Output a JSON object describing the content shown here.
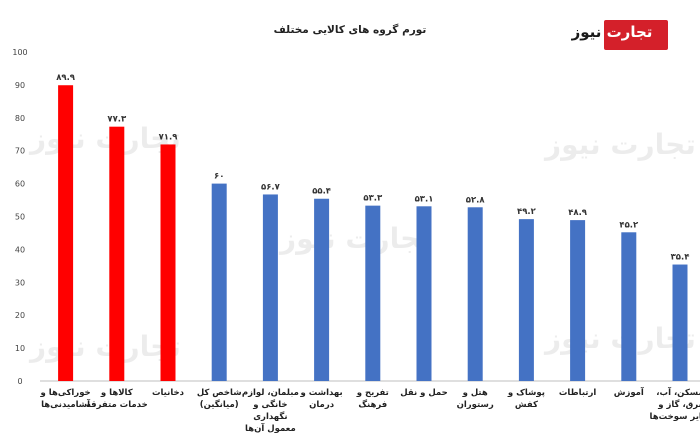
{
  "watermark_text": "تجارت نیوز",
  "logo": {
    "part_a": "تجارت",
    "part_b": "نیوز"
  },
  "colors": {
    "highlight": "#ff0000",
    "default": "#4472c4"
  },
  "chart_data": {
    "type": "bar",
    "title": "تورم گروه های کالایی مختلف",
    "xlabel": "",
    "ylabel": "",
    "ylim": [
      0,
      100
    ],
    "yticks": [
      {
        "value": 0,
        "label": "0"
      },
      {
        "value": 10,
        "label": "10"
      },
      {
        "value": 20,
        "label": "20"
      },
      {
        "value": 30,
        "label": "30"
      },
      {
        "value": 40,
        "label": "40"
      },
      {
        "value": 50,
        "label": "50"
      },
      {
        "value": 60,
        "label": "60"
      },
      {
        "value": 70,
        "label": "70"
      },
      {
        "value": 80,
        "label": "80"
      },
      {
        "value": 90,
        "label": "90"
      },
      {
        "value": 100,
        "label": "100"
      }
    ],
    "grid": false,
    "legend": "none",
    "categories": [
      [
        "خوراکی‌ها و",
        "آشامیدنی‌ها"
      ],
      [
        "کالاها و",
        "خدمات متفرقه"
      ],
      [
        "دخانیات"
      ],
      [
        "شاخص کل",
        "(میانگین)"
      ],
      [
        "مبلمان، لوازم",
        "خانگی و",
        "نگهداری",
        "معمول آن‌ها"
      ],
      [
        "بهداشت و",
        "درمان"
      ],
      [
        "تفریح و",
        "فرهنگ"
      ],
      [
        "حمل و نقل"
      ],
      [
        "هتل و",
        "رستوران"
      ],
      [
        "پوشاک و",
        "کفش"
      ],
      [
        "ارتباطات"
      ],
      [
        "آموزش"
      ],
      [
        "مسکن، آب،",
        "برق، گاز و",
        "سایر سوخت‌ها"
      ]
    ],
    "values": [
      89.9,
      77.3,
      71.9,
      60,
      56.7,
      55.4,
      53.3,
      53.1,
      52.8,
      49.2,
      48.9,
      45.2,
      35.4
    ],
    "value_labels": [
      "۸۹.۹",
      "۷۷.۳",
      "۷۱.۹",
      "۶۰",
      "۵۶.۷",
      "۵۵.۴",
      "۵۳.۳",
      "۵۳.۱",
      "۵۲.۸",
      "۴۹.۲",
      "۴۸.۹",
      "۴۵.۲",
      "۳۵.۴"
    ],
    "bar_colors": [
      "highlight",
      "highlight",
      "highlight",
      "default",
      "default",
      "default",
      "default",
      "default",
      "default",
      "default",
      "default",
      "default",
      "default"
    ]
  }
}
